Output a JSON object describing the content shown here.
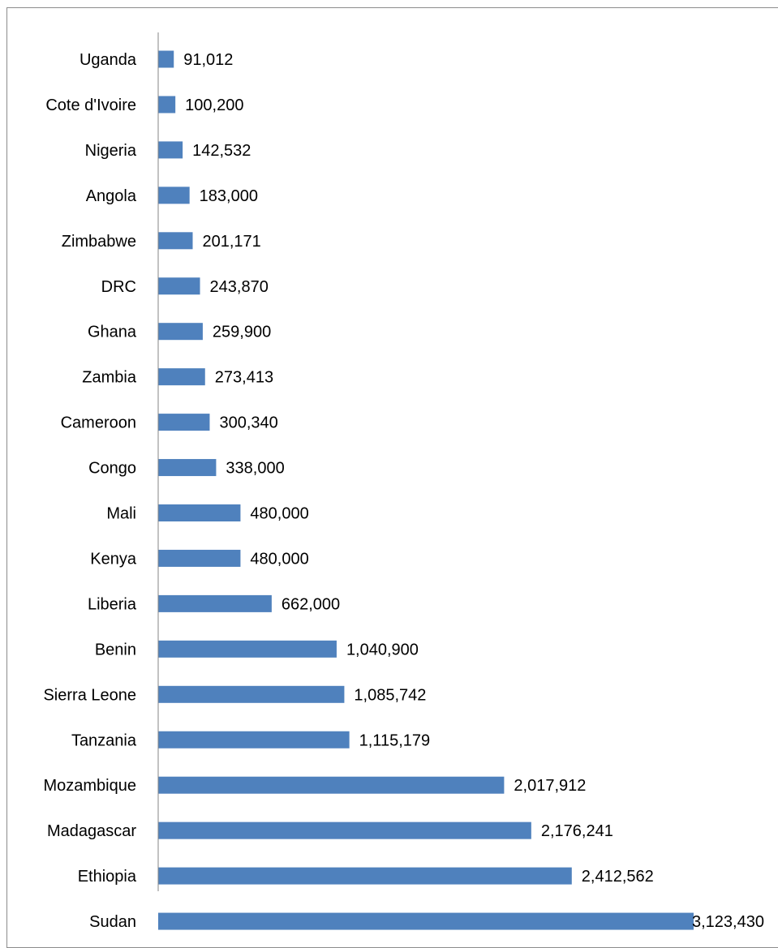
{
  "chart_data": {
    "type": "bar",
    "orientation": "horizontal",
    "title": "",
    "xlabel": "",
    "ylabel": "",
    "categories": [
      "Uganda",
      "Cote d'Ivoire",
      "Nigeria",
      "Angola",
      "Zimbabwe",
      "DRC",
      "Ghana",
      "Zambia",
      "Cameroon",
      "Congo",
      "Mali",
      "Kenya",
      "Liberia",
      "Benin",
      "Sierra Leone",
      "Tanzania",
      "Mozambique",
      "Madagascar",
      "Ethiopia",
      "Sudan"
    ],
    "values": [
      91012,
      100200,
      142532,
      183000,
      201171,
      243870,
      259900,
      273413,
      300340,
      338000,
      480000,
      480000,
      662000,
      1040900,
      1085742,
      1115179,
      2017912,
      2176241,
      2412562,
      3123430
    ],
    "value_labels": [
      "91,012",
      "100,200",
      "142,532",
      "183,000",
      "201,171",
      "243,870",
      "259,900",
      "273,413",
      "300,340",
      "338,000",
      "480,000",
      "480,000",
      "662,000",
      "1,040,900",
      "1,085,742",
      "1,115,179",
      "2,017,912",
      "2,176,241",
      "2,412,562",
      "3,123,430"
    ],
    "xlim": [
      0,
      3123430
    ],
    "grid": false,
    "legend": "none",
    "bar_color": "#4f81bd",
    "axis_color": "#868686"
  }
}
